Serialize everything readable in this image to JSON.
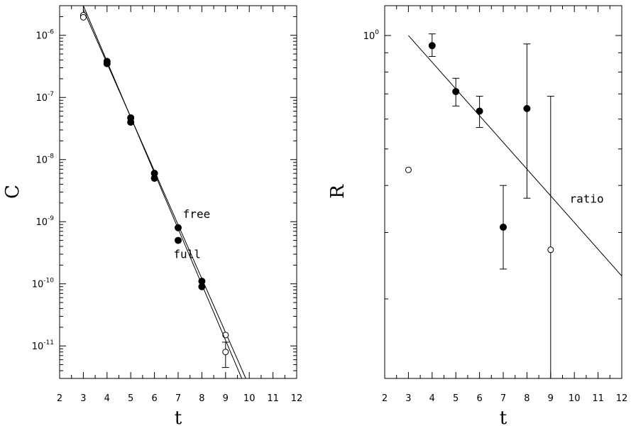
{
  "chart_data": [
    {
      "type": "scatter",
      "title": "",
      "xlabel": "t",
      "ylabel": "C",
      "yscale": "log",
      "xlim": [
        2,
        12
      ],
      "ylim": [
        3e-12,
        3e-06
      ],
      "x_ticks": [
        2,
        3,
        4,
        5,
        6,
        7,
        8,
        9,
        10,
        11,
        12
      ],
      "y_ticks": [
        {
          "mantissa": "10",
          "exp": "-6",
          "value": 1e-06
        },
        {
          "mantissa": "10",
          "exp": "-7",
          "value": 1e-07
        },
        {
          "mantissa": "10",
          "exp": "-8",
          "value": 1e-08
        },
        {
          "mantissa": "10",
          "exp": "-9",
          "value": 1e-09
        },
        {
          "mantissa": "10",
          "exp": "-10",
          "value": 1e-10
        },
        {
          "mantissa": "10",
          "exp": "-11",
          "value": 1e-11
        }
      ],
      "series": [
        {
          "name": "free",
          "marker": "filled",
          "points": [
            {
              "x": 4,
              "y": 3.8e-07
            },
            {
              "x": 5,
              "y": 4.7e-08
            },
            {
              "x": 6,
              "y": 6e-09
            },
            {
              "x": 7,
              "y": 8e-10
            },
            {
              "x": 8,
              "y": 1.1e-10
            }
          ],
          "open_points": [
            {
              "x": 3,
              "y": 2.1e-06
            },
            {
              "x": 9,
              "y": 1.5e-11
            }
          ],
          "fit": [
            {
              "x": 3,
              "y": 2.6e-06
            },
            {
              "x": 9.87,
              "y": 2.9e-12
            }
          ]
        },
        {
          "name": "full",
          "marker": "filled",
          "points": [
            {
              "x": 4,
              "y": 3.5e-07
            },
            {
              "x": 5,
              "y": 4e-08
            },
            {
              "x": 6,
              "y": 5e-09
            },
            {
              "x": 7,
              "y": 5e-10
            },
            {
              "x": 8,
              "y": 9e-11
            }
          ],
          "open_points": [
            {
              "x": 3,
              "y": 1.95e-06
            },
            {
              "x": 9,
              "y": 8e-12,
              "yerr": [
                4.5e-12,
                1.15e-11
              ]
            }
          ],
          "fit": [
            {
              "x": 3,
              "y": 3e-06
            },
            {
              "x": 9.7,
              "y": 2.9e-12
            }
          ]
        }
      ],
      "annotations": [
        {
          "text": "free",
          "x": 7.2,
          "y": 1.15e-09
        },
        {
          "text": "full",
          "x": 6.8,
          "y": 2.6e-10
        }
      ]
    },
    {
      "type": "scatter",
      "title": "",
      "xlabel": "t",
      "ylabel": "R",
      "yscale": "log",
      "xlim": [
        2,
        12
      ],
      "ylim": [
        0.123,
        1.2
      ],
      "x_ticks": [
        2,
        3,
        4,
        5,
        6,
        7,
        8,
        9,
        10,
        11,
        12
      ],
      "y_ticks": [
        {
          "mantissa": "10",
          "exp": "0",
          "value": 1.0
        }
      ],
      "series": [
        {
          "name": "ratio",
          "points": [
            {
              "x": 4,
              "y": 0.94,
              "yerr": [
                0.88,
                1.01
              ]
            },
            {
              "x": 5,
              "y": 0.71,
              "yerr": [
                0.65,
                0.77
              ]
            },
            {
              "x": 6,
              "y": 0.63,
              "yerr": [
                0.57,
                0.69
              ]
            },
            {
              "x": 7,
              "y": 0.31,
              "yerr": [
                0.24,
                0.4
              ]
            },
            {
              "x": 8,
              "y": 0.64,
              "yerr": [
                0.37,
                0.95
              ]
            }
          ],
          "open_points": [
            {
              "x": 3,
              "y": 0.44
            },
            {
              "x": 9,
              "y": 0.27,
              "yerr": [
                0.12,
                0.69
              ]
            }
          ],
          "fit": [
            {
              "x": 3,
              "y": 1.0
            },
            {
              "x": 12,
              "y": 0.23
            }
          ]
        }
      ],
      "annotations": [
        {
          "text": "ratio",
          "x": 9.8,
          "y": 0.36
        }
      ]
    }
  ]
}
